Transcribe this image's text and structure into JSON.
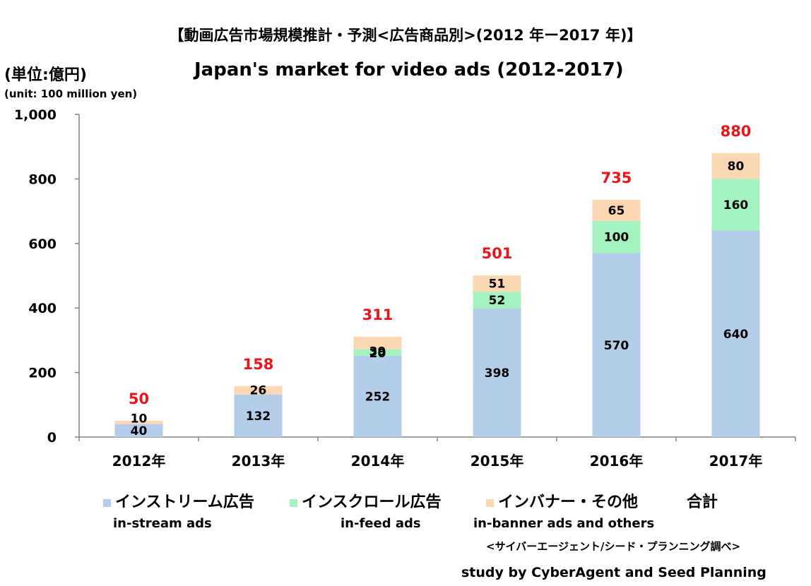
{
  "header": {
    "title_jp": "【動画広告市場規模推計・予測<広告商品別>(2012 年ー2017 年)】",
    "title_en": "Japan's market for video ads (2012-2017)",
    "unit_jp": "(単位:億円)",
    "unit_en": "(unit: 100 million yen)"
  },
  "legend": {
    "instream_jp": "インストリーム広告",
    "infeed_jp": "インスクロール広告",
    "inbanner_jp": "インバナー・その他",
    "total_jp": "合計",
    "instream_en": "in-stream ads",
    "infeed_en": "in-feed ads",
    "inbanner_en": "in-banner ads and others"
  },
  "source": {
    "jp": "<サイバーエージェント/シード・プランニング調べ>",
    "en": "study by CyberAgent and Seed Planning"
  },
  "colors": {
    "instream": "#b4cdea",
    "infeed": "#a4f2c0",
    "inbanner": "#fbd7b4",
    "total_label": "#e8161b",
    "axis": "#808080"
  },
  "chart_data": {
    "type": "bar",
    "stacked": true,
    "categories": [
      "2012年",
      "2013年",
      "2014年",
      "2015年",
      "2016年",
      "2017年"
    ],
    "series": [
      {
        "name": "インストリーム広告",
        "values": [
          40,
          132,
          252,
          398,
          570,
          640
        ]
      },
      {
        "name": "インスクロール広告",
        "values": [
          0,
          0,
          20,
          52,
          100,
          160
        ]
      },
      {
        "name": "インバナー・その他",
        "values": [
          10,
          26,
          39,
          51,
          65,
          80
        ]
      }
    ],
    "totals": [
      50,
      158,
      311,
      501,
      735,
      880
    ],
    "ylim": [
      0,
      1000
    ],
    "yticks": [
      0,
      200,
      400,
      600,
      800,
      1000
    ],
    "ytick_labels": [
      "0",
      "200",
      "400",
      "600",
      "800",
      "1,000"
    ],
    "grid": false,
    "legend_position": "bottom"
  }
}
